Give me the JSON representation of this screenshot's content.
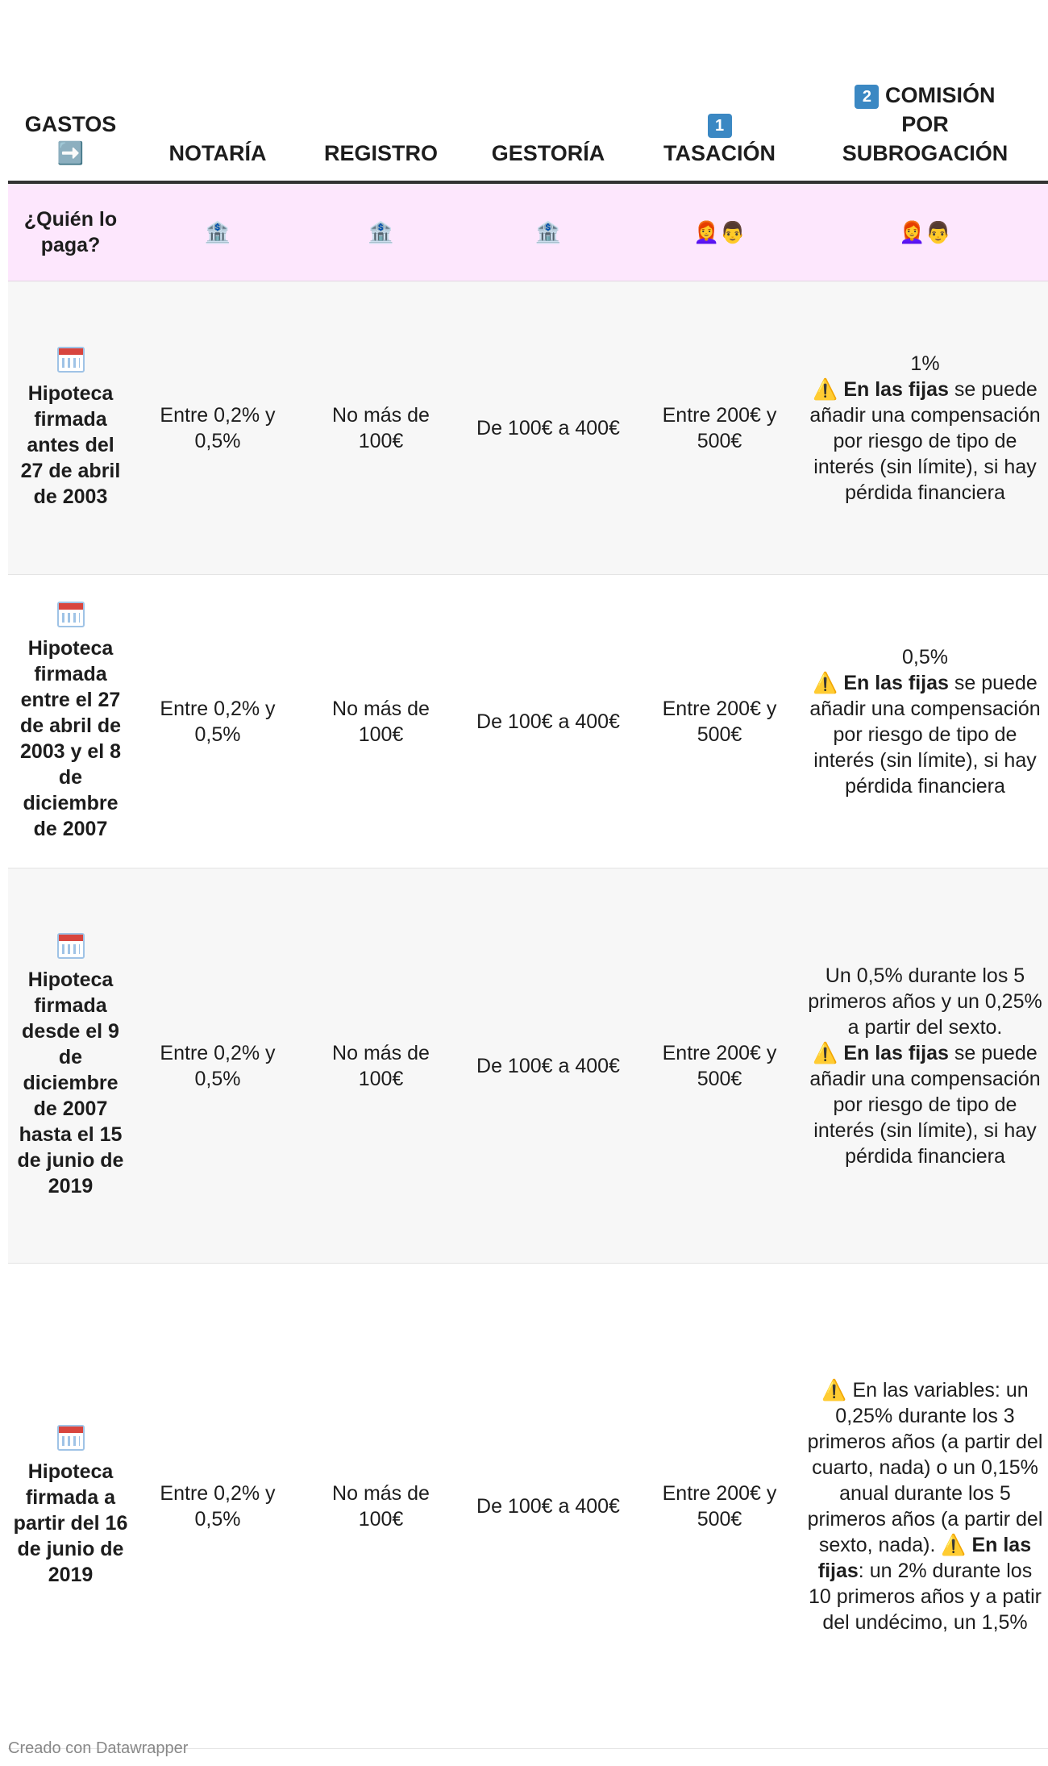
{
  "headers": {
    "gastos_line1": "GASTOS",
    "gastos_arrow": "➡️",
    "notaria": "NOTARÍA",
    "registro": "REGISTRO",
    "gestoria": "GESTORÍA",
    "tasacion_num": "1",
    "tasacion": "TASACIÓN",
    "comision_num": "2",
    "comision_line1": "COMISIÓN",
    "comision_line2": "POR",
    "comision_line3": "SUBROGACIÓN"
  },
  "payer": {
    "label": "¿Quién lo paga?",
    "bank_glyph": "🏦",
    "people_glyph": "👩‍🦰👨",
    "icons": [
      "bank-icon",
      "bank-icon",
      "bank-icon",
      "people-icon",
      "people-icon"
    ]
  },
  "rows": [
    {
      "label": "Hipoteca firmada antes del 27 de abril de 2003",
      "notaria": "Entre 0,2% y 0,5%",
      "registro": "No más de 100€",
      "gestoria": "De 100€ a 400€",
      "tasacion": "Entre 200€ y 500€",
      "comision_pre": "1%",
      "comision_bold": "En las fijas",
      "comision_post": "se puede añadir una compensación por riesgo de tipo de interés (sin límite), si hay pérdida financiera"
    },
    {
      "label": "Hipoteca firmada entre el 27 de abril de 2003 y el 8 de diciembre de 2007",
      "notaria": "Entre 0,2% y 0,5%",
      "registro": "No más de 100€",
      "gestoria": "De 100€ a 400€",
      "tasacion": "Entre 200€ y 500€",
      "comision_pre": "0,5%",
      "comision_bold": "En las fijas",
      "comision_post": "se puede añadir una compensación por riesgo de tipo de interés (sin límite), si hay pérdida financiera"
    },
    {
      "label": "Hipoteca firmada desde el 9 de diciembre de 2007 hasta el 15 de junio de 2019",
      "notaria": "Entre 0,2% y 0,5%",
      "registro": "No más de 100€",
      "gestoria": "De 100€ a 400€",
      "tasacion": "Entre 200€ y 500€",
      "comision_pre": "Un 0,5% durante los 5 primeros años y un 0,25% a partir del sexto.",
      "comision_bold": "En las fijas",
      "comision_post": "se puede añadir una compensación por riesgo de tipo de interés (sin límite), si hay pérdida financiera"
    },
    {
      "label": "Hipoteca firmada a partir del 16 de junio de 2019",
      "notaria": "Entre 0,2% y 0,5%",
      "registro": "No más de 100€",
      "gestoria": "De 100€ a 400€",
      "tasacion": "Entre 200€ y 500€",
      "comision_pre": "En las variables: un 0,25% durante los 3 primeros años (a partir del cuarto, nada) o un 0,15% anual durante los 5 primeros años (a partir del sexto, nada).",
      "comision_bold": "En las fijas",
      "comision_post": ": un 2% durante los 10 primeros años y a patir del undécimo, un 1,5%"
    }
  ],
  "footer": "Creado con Datawrapper",
  "colors": {
    "payer_row_bg": "#fde7fd",
    "row_grey_bg": "#f7f7f7",
    "header_rule": "#333333",
    "keycap_blue": "#3b88c3"
  }
}
